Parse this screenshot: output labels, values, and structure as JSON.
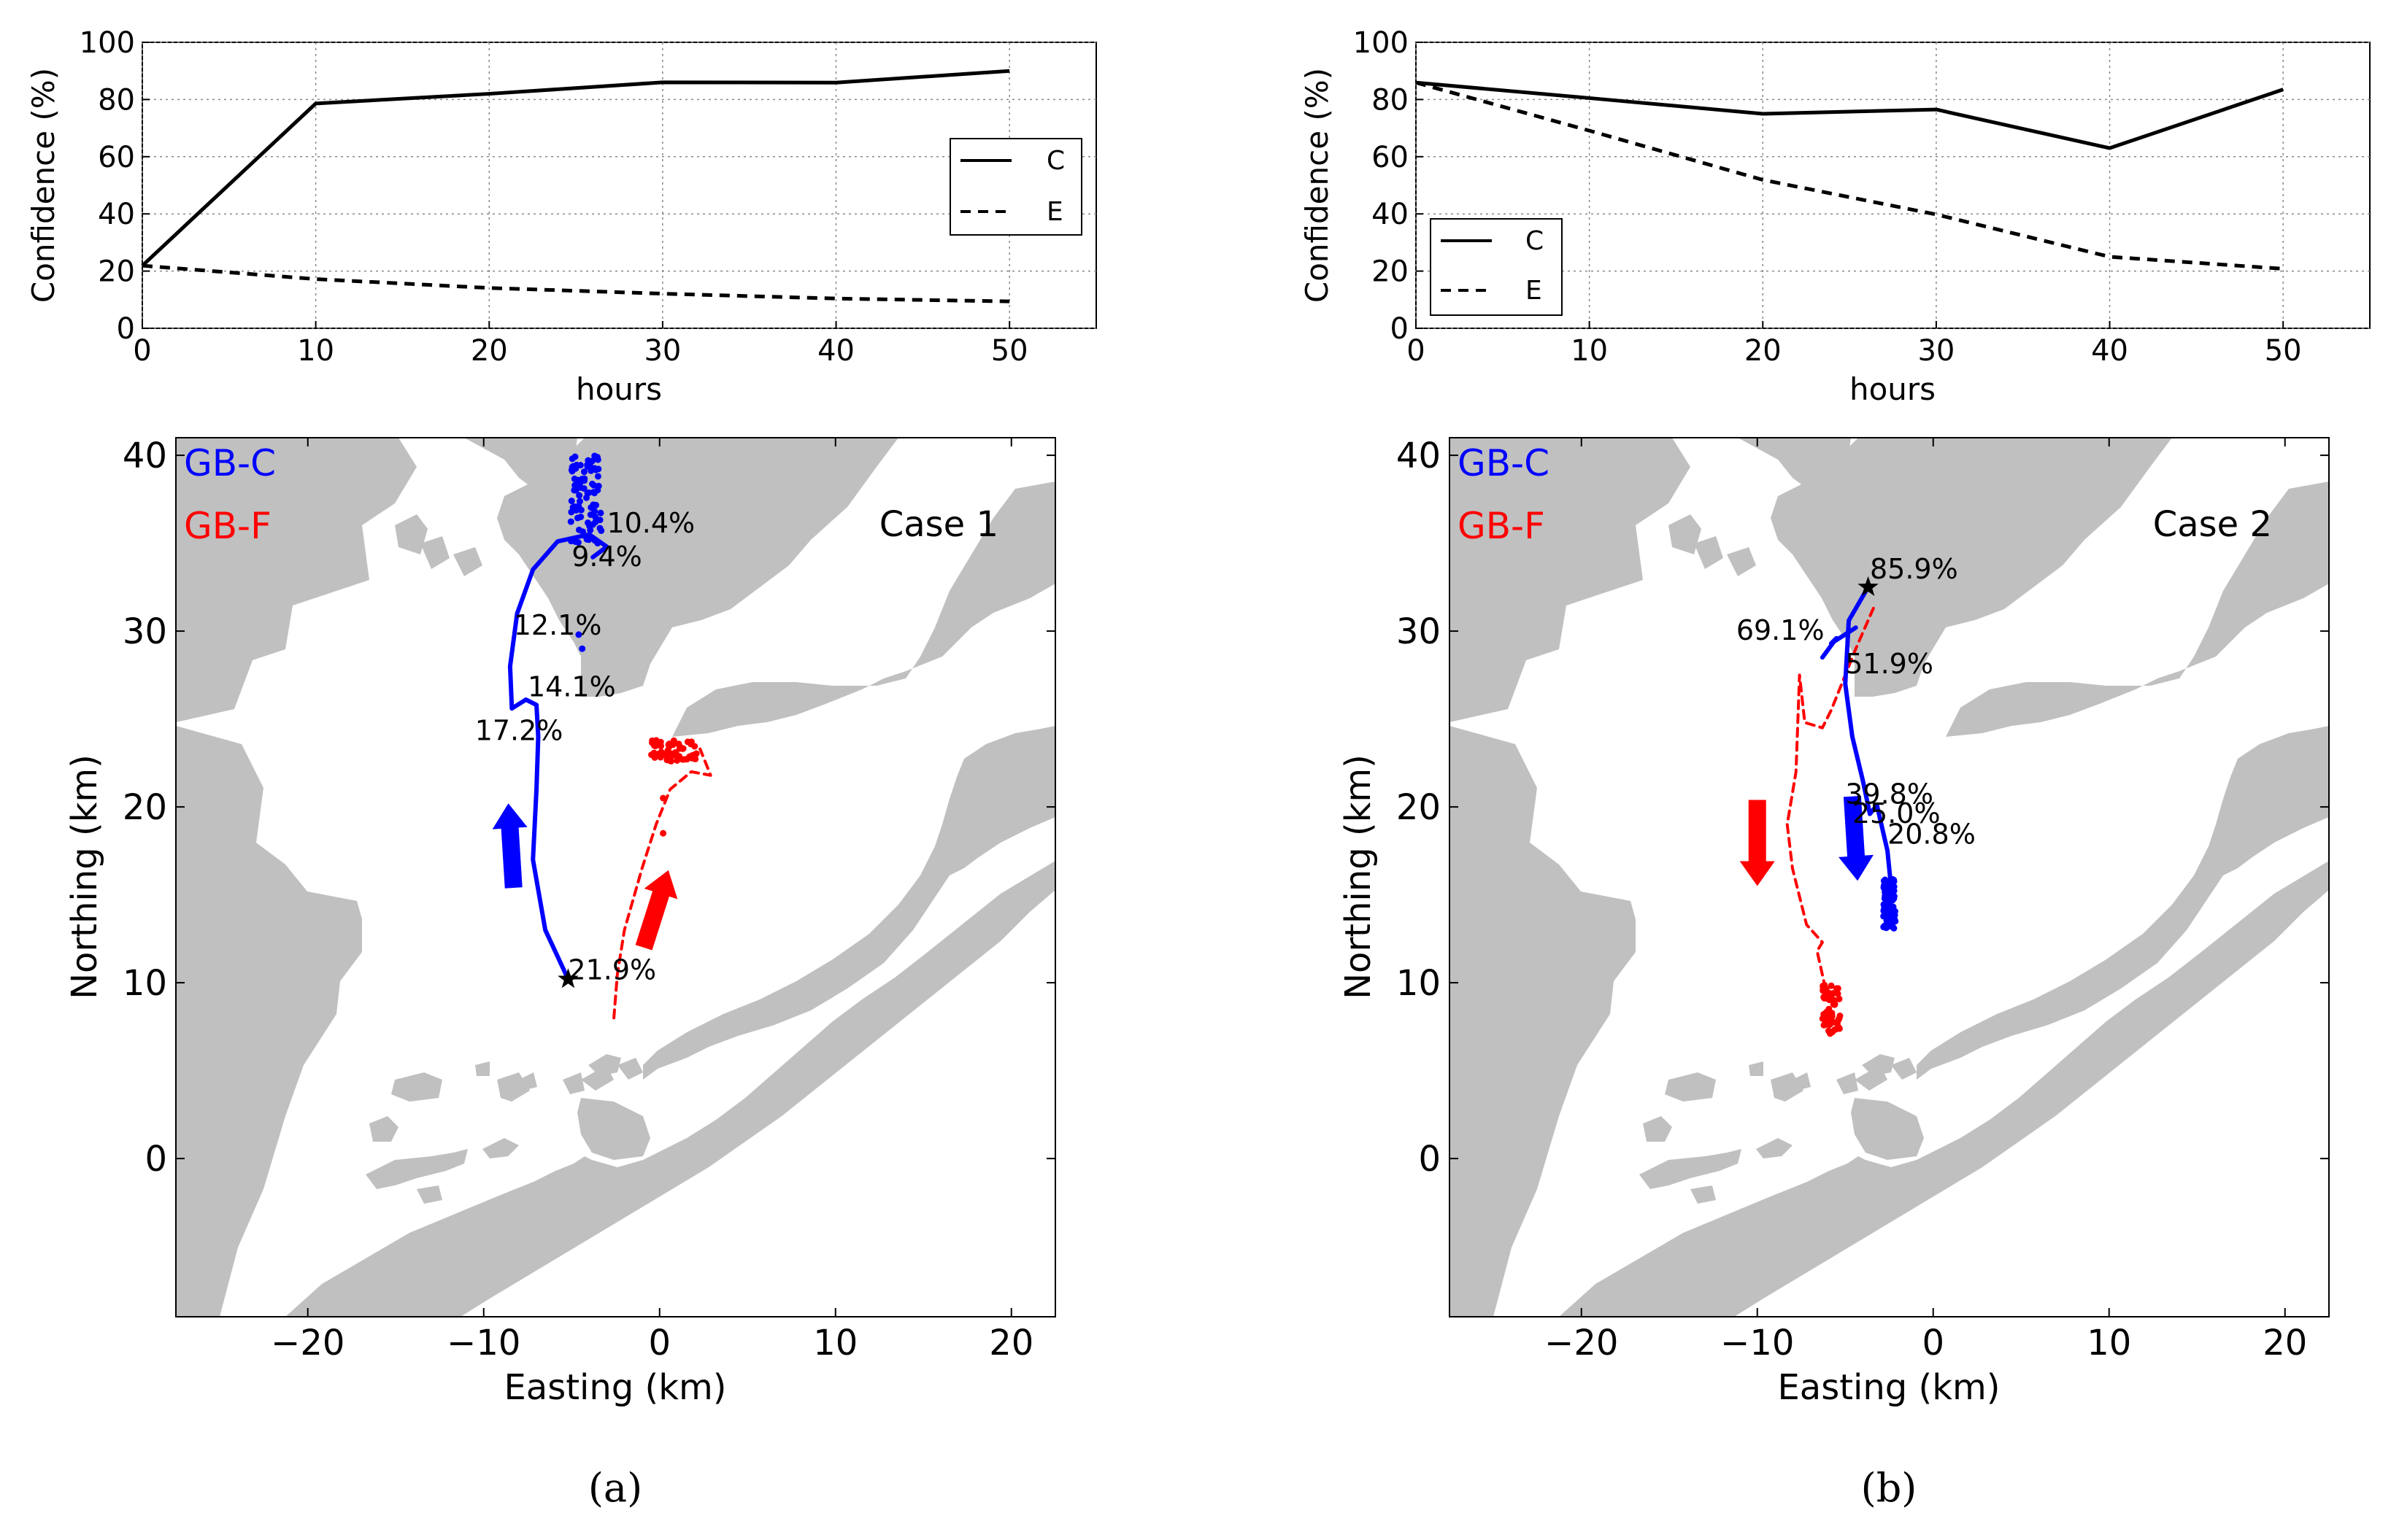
{
  "colors": {
    "land": "#c0c0c0",
    "gb_c": "#0000ff",
    "gb_f": "#ff0000",
    "line": "#000000"
  },
  "chart_data": [
    {
      "type": "line",
      "panel": "a",
      "xlabel": "hours",
      "ylabel": "Confidence (%)",
      "xlim": [
        0,
        55
      ],
      "ylim": [
        0,
        100
      ],
      "xticks": [
        0,
        10,
        20,
        30,
        40,
        50
      ],
      "yticks": [
        0,
        20,
        40,
        60,
        80,
        100
      ],
      "grid": true,
      "legend": "right",
      "series": [
        {
          "name": "C",
          "style": "solid",
          "x": [
            0,
            10,
            20,
            30,
            40,
            50
          ],
          "values": [
            21.9,
            78.6,
            82,
            86,
            85.9,
            90
          ]
        },
        {
          "name": "E",
          "style": "dashed",
          "x": [
            0,
            10,
            20,
            30,
            40,
            50
          ],
          "values": [
            21.9,
            17.2,
            14.1,
            12.1,
            10.4,
            9.4
          ]
        }
      ]
    },
    {
      "type": "line",
      "panel": "b",
      "xlabel": "hours",
      "ylabel": "Confidence (%)",
      "xlim": [
        0,
        55
      ],
      "ylim": [
        0,
        100
      ],
      "xticks": [
        0,
        10,
        20,
        30,
        40,
        50
      ],
      "yticks": [
        0,
        20,
        40,
        60,
        80,
        100
      ],
      "grid": true,
      "legend": "lower-left",
      "series": [
        {
          "name": "C",
          "style": "solid",
          "x": [
            0,
            10,
            20,
            30,
            40,
            50
          ],
          "values": [
            85.9,
            80.5,
            75,
            76.5,
            63,
            83.5
          ]
        },
        {
          "name": "E",
          "style": "dashed",
          "x": [
            0,
            10,
            20,
            30,
            40,
            50
          ],
          "values": [
            85.9,
            69.1,
            51.9,
            39.8,
            25.0,
            20.8
          ]
        }
      ]
    },
    {
      "type": "scatter",
      "panel": "a",
      "title": "Case 1",
      "xlabel": "Easting (km)",
      "ylabel": "Northing (km)",
      "xlim": [
        -27.5,
        22.5
      ],
      "ylim": [
        -9,
        41
      ],
      "xticks": [
        -20,
        -10,
        0,
        10,
        20
      ],
      "yticks": [
        0,
        10,
        20,
        30,
        40
      ],
      "track_labels": [
        "GB-C",
        "GB-F"
      ],
      "start": [
        -5.2,
        10.2
      ],
      "gb_c_track": [
        [
          -5.2,
          10.2
        ],
        [
          -6.5,
          13
        ],
        [
          -7.2,
          17
        ],
        [
          -7.0,
          21
        ],
        [
          -6.9,
          24
        ],
        [
          -7.0,
          25.8
        ],
        [
          -7.6,
          26.1
        ],
        [
          -8.4,
          25.6
        ],
        [
          -8.5,
          28
        ],
        [
          -8.1,
          31
        ],
        [
          -7.2,
          33.5
        ],
        [
          -5.8,
          35.1
        ],
        [
          -4.0,
          35.5
        ],
        [
          -3.0,
          34.8
        ],
        [
          -3.8,
          34.2
        ]
      ],
      "gb_c_cluster_center": [
        -4.2,
        37.5
      ],
      "gb_c_dots": [
        [
          -4.6,
          29.8
        ],
        [
          -4.4,
          29.0
        ]
      ],
      "gb_f_track": [
        [
          -2.6,
          8.0
        ],
        [
          -2.4,
          10.5
        ],
        [
          -2.0,
          13
        ],
        [
          -1.0,
          16.5
        ],
        [
          -0.2,
          19.0
        ],
        [
          0.6,
          21.0
        ],
        [
          1.8,
          22.0
        ],
        [
          2.9,
          21.8
        ],
        [
          2.3,
          23.3
        ]
      ],
      "gb_f_cluster_center": [
        0.8,
        23.2
      ],
      "gb_f_dots": [
        [
          0.2,
          20.5
        ],
        [
          0.2,
          18.5
        ]
      ],
      "arrows": [
        {
          "color": "blue",
          "from": [
            -8.3,
            15.4
          ],
          "to": [
            -8.6,
            20.2
          ]
        },
        {
          "color": "red",
          "from": [
            -0.9,
            12.0
          ],
          "to": [
            0.5,
            16.4
          ]
        }
      ],
      "annotations": [
        {
          "text": "21.9%",
          "x": -5.2,
          "y": 10.2
        },
        {
          "text": "17.2%",
          "x": -10.5,
          "y": 23.8
        },
        {
          "text": "14.1%",
          "x": -7.5,
          "y": 26.3
        },
        {
          "text": "12.1%",
          "x": -8.3,
          "y": 29.8
        },
        {
          "text": "9.4%",
          "x": -5.0,
          "y": 33.7
        },
        {
          "text": "10.4%",
          "x": -3.0,
          "y": 35.6
        }
      ]
    },
    {
      "type": "scatter",
      "panel": "b",
      "title": "Case 2",
      "xlabel": "Easting (km)",
      "ylabel": "Northing (km)",
      "xlim": [
        -27.5,
        22.5
      ],
      "ylim": [
        -9,
        41
      ],
      "xticks": [
        -20,
        -10,
        0,
        10,
        20
      ],
      "yticks": [
        0,
        10,
        20,
        30,
        40
      ],
      "track_labels": [
        "GB-C",
        "GB-F"
      ],
      "start": [
        -3.7,
        32.5
      ],
      "gb_c_track": [
        [
          -3.7,
          32.5
        ],
        [
          -4.8,
          30.6
        ],
        [
          -5.0,
          27
        ],
        [
          -4.6,
          24
        ],
        [
          -4.0,
          21.5
        ],
        [
          -3.6,
          19.6
        ],
        [
          -3.2,
          20.1
        ],
        [
          -2.6,
          17.5
        ],
        [
          -2.4,
          15.5
        ],
        [
          -2.6,
          13.5
        ]
      ],
      "gb_c_branch": [
        [
          -4.4,
          30.2
        ],
        [
          -5.8,
          29.3
        ],
        [
          -5.5,
          29.6
        ],
        [
          -6.3,
          28.5
        ]
      ],
      "gb_c_cluster_center": [
        -2.5,
        14.5
      ],
      "gb_f_track": [
        [
          -3.4,
          31.3
        ],
        [
          -4.4,
          29.0
        ],
        [
          -5.8,
          25.5
        ],
        [
          -6.3,
          24.5
        ],
        [
          -7.3,
          24.8
        ],
        [
          -7.6,
          27.5
        ],
        [
          -7.8,
          22
        ],
        [
          -8.3,
          19
        ],
        [
          -8.0,
          16.5
        ],
        [
          -7.2,
          13.3
        ],
        [
          -6.3,
          12.3
        ],
        [
          -6.6,
          11.8
        ],
        [
          -6.2,
          10.0
        ]
      ],
      "gb_f_cluster_center": [
        -5.8,
        8.5
      ],
      "arrows": [
        {
          "color": "blue",
          "from": [
            -4.6,
            20.6
          ],
          "to": [
            -4.3,
            15.8
          ]
        },
        {
          "color": "red",
          "from": [
            -10.0,
            20.4
          ],
          "to": [
            -10.0,
            15.5
          ]
        }
      ],
      "annotations": [
        {
          "text": "85.9%",
          "x": -3.6,
          "y": 33.0
        },
        {
          "text": "69.1%",
          "x": -11.2,
          "y": 29.5
        },
        {
          "text": "51.9%",
          "x": -5.0,
          "y": 27.6
        },
        {
          "text": "39.8%",
          "x": -5.0,
          "y": 20.2
        },
        {
          "text": "25.0%",
          "x": -4.6,
          "y": 19.1
        },
        {
          "text": "20.8%",
          "x": -2.6,
          "y": 17.9
        }
      ]
    }
  ],
  "legend_labels": [
    "C",
    "E"
  ],
  "panel_labels": [
    "(a)",
    "(b)"
  ]
}
